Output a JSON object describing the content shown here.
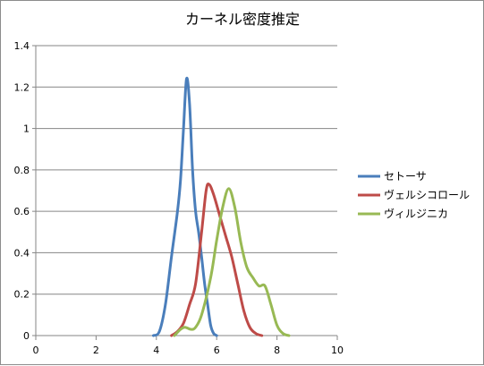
{
  "chart_data": {
    "type": "line",
    "title": "カーネル密度推定",
    "xlabel": "",
    "ylabel": "",
    "xlim": [
      0,
      10
    ],
    "ylim": [
      0,
      1.4
    ],
    "x_ticks": [
      "0",
      "2",
      "4",
      "6",
      "8",
      "10"
    ],
    "y_ticks": [
      "0",
      "0.2",
      "0.4",
      "0.6",
      "0.8",
      "1",
      "1.2",
      "1.4"
    ],
    "grid": "horizontal",
    "legend_position": "right",
    "series": [
      {
        "name": "セトーサ",
        "color": "#4a7ebb",
        "points": [
          [
            3.9,
            0
          ],
          [
            4.1,
            0.02
          ],
          [
            4.3,
            0.15
          ],
          [
            4.5,
            0.38
          ],
          [
            4.7,
            0.6
          ],
          [
            4.8,
            0.75
          ],
          [
            4.9,
            1.0
          ],
          [
            5.0,
            1.24
          ],
          [
            5.1,
            1.12
          ],
          [
            5.2,
            0.8
          ],
          [
            5.3,
            0.6
          ],
          [
            5.4,
            0.5
          ],
          [
            5.5,
            0.38
          ],
          [
            5.6,
            0.25
          ],
          [
            5.7,
            0.15
          ],
          [
            5.8,
            0.05
          ],
          [
            5.9,
            0.01
          ],
          [
            6.0,
            0
          ]
        ]
      },
      {
        "name": "ヴェルシコロール",
        "color": "#be4b48",
        "points": [
          [
            4.5,
            0
          ],
          [
            4.7,
            0.02
          ],
          [
            4.9,
            0.06
          ],
          [
            5.1,
            0.15
          ],
          [
            5.3,
            0.25
          ],
          [
            5.5,
            0.5
          ],
          [
            5.65,
            0.7
          ],
          [
            5.75,
            0.73
          ],
          [
            5.9,
            0.68
          ],
          [
            6.1,
            0.58
          ],
          [
            6.3,
            0.48
          ],
          [
            6.5,
            0.38
          ],
          [
            6.7,
            0.25
          ],
          [
            6.9,
            0.12
          ],
          [
            7.1,
            0.04
          ],
          [
            7.3,
            0.01
          ],
          [
            7.5,
            0
          ]
        ]
      },
      {
        "name": "ヴィルジニカ",
        "color": "#98b954",
        "points": [
          [
            4.6,
            0
          ],
          [
            4.8,
            0.03
          ],
          [
            4.95,
            0.04
          ],
          [
            5.15,
            0.03
          ],
          [
            5.3,
            0.04
          ],
          [
            5.5,
            0.1
          ],
          [
            5.8,
            0.28
          ],
          [
            6.0,
            0.46
          ],
          [
            6.2,
            0.62
          ],
          [
            6.4,
            0.71
          ],
          [
            6.6,
            0.62
          ],
          [
            6.8,
            0.45
          ],
          [
            7.0,
            0.33
          ],
          [
            7.2,
            0.28
          ],
          [
            7.4,
            0.24
          ],
          [
            7.6,
            0.24
          ],
          [
            7.8,
            0.15
          ],
          [
            8.0,
            0.05
          ],
          [
            8.2,
            0.01
          ],
          [
            8.4,
            0
          ]
        ]
      }
    ]
  }
}
